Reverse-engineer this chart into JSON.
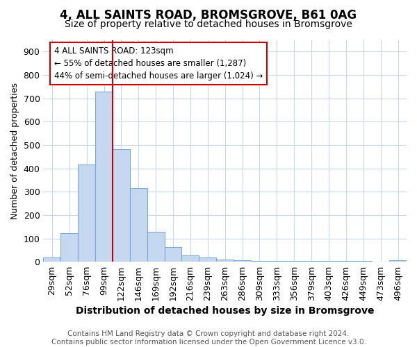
{
  "title": "4, ALL SAINTS ROAD, BROMSGROVE, B61 0AG",
  "subtitle": "Size of property relative to detached houses in Bromsgrove",
  "xlabel": "Distribution of detached houses by size in Bromsgrove",
  "ylabel": "Number of detached properties",
  "categories": [
    "29sqm",
    "52sqm",
    "76sqm",
    "99sqm",
    "122sqm",
    "146sqm",
    "169sqm",
    "192sqm",
    "216sqm",
    "239sqm",
    "263sqm",
    "286sqm",
    "309sqm",
    "333sqm",
    "356sqm",
    "379sqm",
    "403sqm",
    "426sqm",
    "449sqm",
    "473sqm",
    "496sqm"
  ],
  "values": [
    20,
    122,
    417,
    730,
    483,
    315,
    130,
    65,
    28,
    18,
    10,
    8,
    5,
    5,
    5,
    4,
    4,
    3,
    3,
    0,
    8
  ],
  "bar_color": "#c5d8f0",
  "bar_edge_color": "#7aaad0",
  "vline_color": "#cc0000",
  "vline_x_index": 4,
  "annotation_text": "4 ALL SAINTS ROAD: 123sqm\n← 55% of detached houses are smaller (1,287)\n44% of semi-detached houses are larger (1,024) →",
  "annotation_box_edge_color": "#cc0000",
  "annotation_box_face_color": "white",
  "background_color": "#ffffff",
  "plot_bg_color": "#ffffff",
  "grid_color": "#c8d8ec",
  "ylim": [
    0,
    950
  ],
  "yticks": [
    0,
    100,
    200,
    300,
    400,
    500,
    600,
    700,
    800,
    900
  ],
  "title_fontsize": 12,
  "subtitle_fontsize": 10,
  "xlabel_fontsize": 10,
  "ylabel_fontsize": 9,
  "tick_fontsize": 9,
  "footer_fontsize": 7.5,
  "footer": "Contains HM Land Registry data © Crown copyright and database right 2024.\nContains public sector information licensed under the Open Government Licence v3.0."
}
